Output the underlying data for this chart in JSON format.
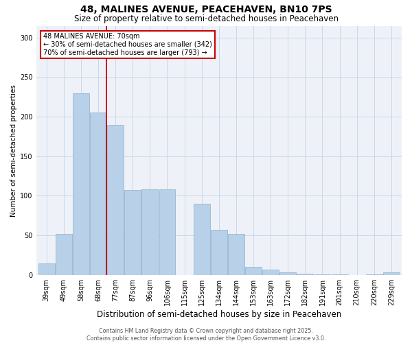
{
  "title": "48, MALINES AVENUE, PEACEHAVEN, BN10 7PS",
  "subtitle": "Size of property relative to semi-detached houses in Peacehaven",
  "xlabel": "Distribution of semi-detached houses by size in Peacehaven",
  "ylabel": "Number of semi-detached properties",
  "categories": [
    "39sqm",
    "49sqm",
    "58sqm",
    "68sqm",
    "77sqm",
    "87sqm",
    "96sqm",
    "106sqm",
    "115sqm",
    "125sqm",
    "134sqm",
    "144sqm",
    "153sqm",
    "163sqm",
    "172sqm",
    "182sqm",
    "191sqm",
    "201sqm",
    "210sqm",
    "220sqm",
    "229sqm"
  ],
  "values": [
    15,
    52,
    230,
    205,
    190,
    107,
    108,
    108,
    0,
    90,
    57,
    52,
    10,
    7,
    3,
    2,
    1,
    1,
    0,
    1,
    3
  ],
  "bar_color": "#b8d0e8",
  "bar_edge_color": "#8ab0cc",
  "bar_linewidth": 0.5,
  "vline_color": "#cc0000",
  "vline_linewidth": 1.3,
  "annotation_text": "48 MALINES AVENUE: 70sqm\n← 30% of semi-detached houses are smaller (342)\n70% of semi-detached houses are larger (793) →",
  "annotation_box_color": "#cc0000",
  "annotation_bg": "#ffffff",
  "ylim": [
    0,
    315
  ],
  "yticks": [
    0,
    50,
    100,
    150,
    200,
    250,
    300
  ],
  "grid_color": "#c8d8e8",
  "background_color": "#eef2f8",
  "footer_text": "Contains HM Land Registry data © Crown copyright and database right 2025.\nContains public sector information licensed under the Open Government Licence v3.0.",
  "title_fontsize": 10,
  "subtitle_fontsize": 8.5,
  "xlabel_fontsize": 8.5,
  "ylabel_fontsize": 7.5,
  "tick_fontsize": 7,
  "annotation_fontsize": 7,
  "footer_fontsize": 5.8
}
